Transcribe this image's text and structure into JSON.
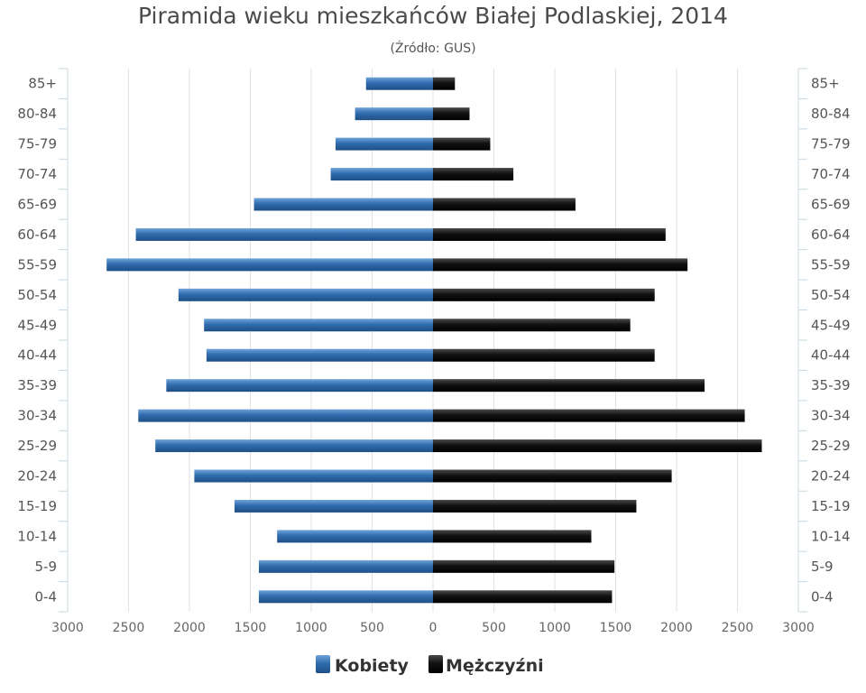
{
  "chart_data": {
    "type": "bar",
    "title": "Piramida wieku mieszkańców Białej Podlaskiej, 2014",
    "subtitle": "(Źródło: GUS)",
    "categories": [
      "0-4",
      "5-9",
      "10-14",
      "15-19",
      "20-24",
      "25-29",
      "30-34",
      "35-39",
      "40-44",
      "45-49",
      "50-54",
      "55-59",
      "60-64",
      "65-69",
      "70-74",
      "75-79",
      "80-84",
      "85+"
    ],
    "series": [
      {
        "name": "Kobiety",
        "color": "#3b78b8",
        "values": [
          1430,
          1430,
          1280,
          1630,
          1960,
          2280,
          2420,
          2190,
          1860,
          1880,
          2090,
          2680,
          2440,
          1470,
          840,
          800,
          640,
          550
        ]
      },
      {
        "name": "Mężczyźni",
        "color": "#111111",
        "values": [
          1470,
          1490,
          1300,
          1670,
          1960,
          2700,
          2560,
          2230,
          1820,
          1620,
          1820,
          2090,
          1910,
          1170,
          660,
          470,
          300,
          180
        ]
      }
    ],
    "x_ticks": [
      "3000",
      "2500",
      "2000",
      "1500",
      "1000",
      "500",
      "0",
      "500",
      "1000",
      "1500",
      "2000",
      "2500",
      "3000"
    ],
    "xlim": [
      -3000,
      3000
    ],
    "grid": true,
    "legend": "bottom-center"
  }
}
